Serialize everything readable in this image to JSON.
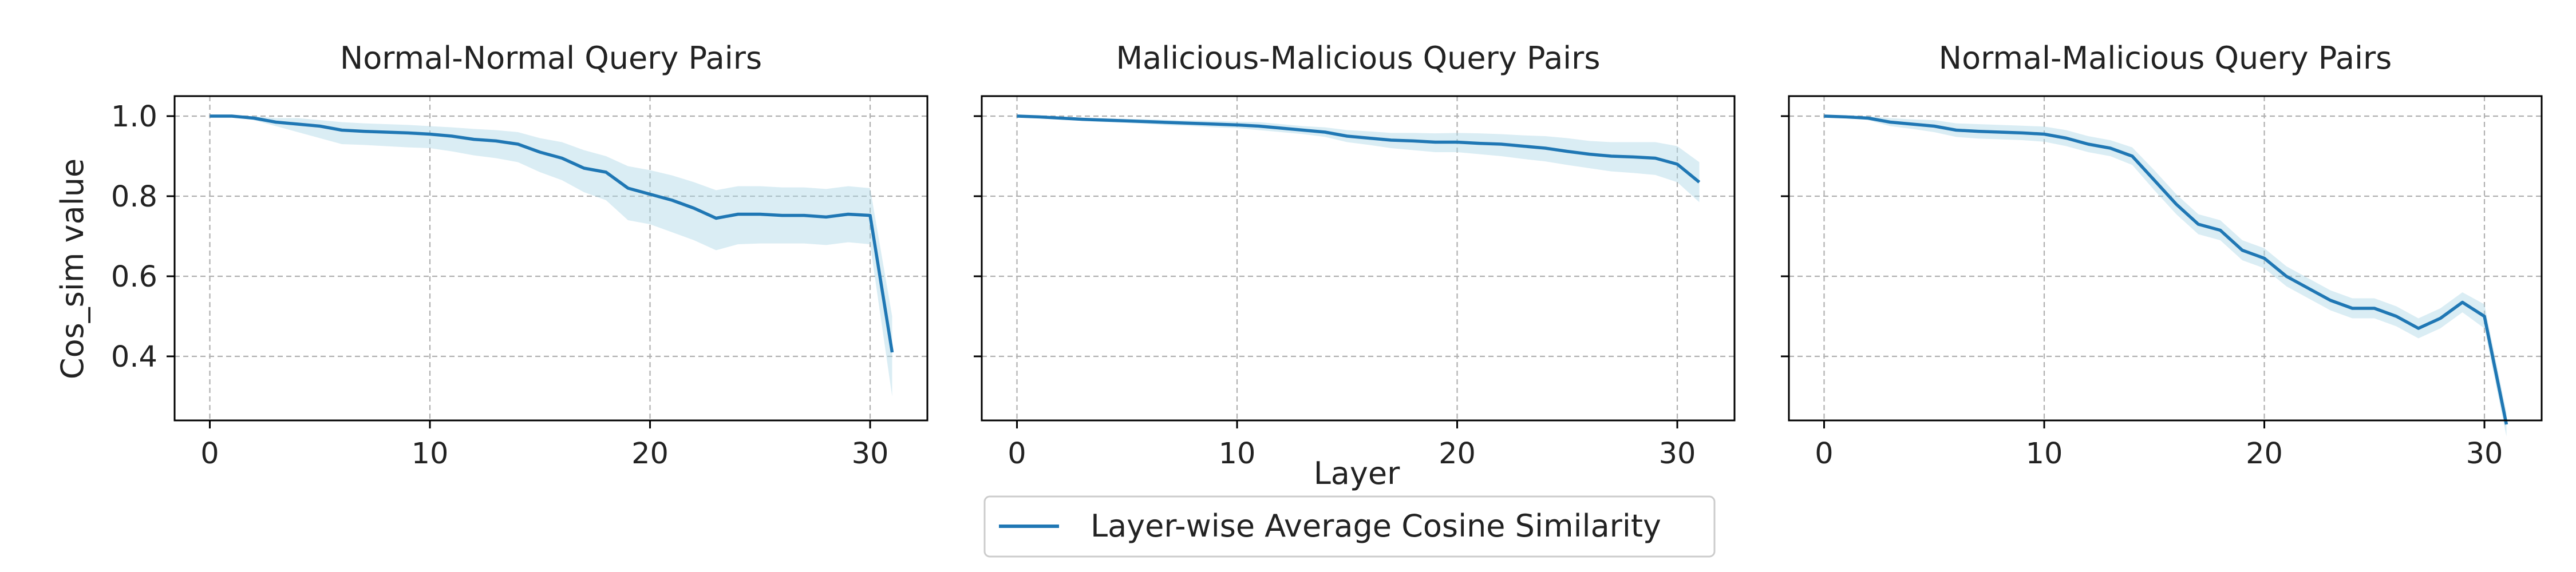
{
  "chart_data": {
    "type": "line",
    "shared": {
      "xlabel": "Layer",
      "ylabel": "Cos_sim value",
      "xlim": [
        -1.6,
        32.6
      ],
      "ylim": [
        0.24,
        1.05
      ],
      "xticks": [
        0,
        10,
        20,
        30
      ],
      "yticks": [
        0.4,
        0.6,
        0.8,
        1.0
      ],
      "ytick_labels": [
        "0.4",
        "0.6",
        "0.8",
        "1.0"
      ],
      "grid": true,
      "grid_style": "dashed",
      "legend": {
        "placement": "bottom-center",
        "entries": [
          "Layer-wise Average Cosine Similarity"
        ]
      },
      "colors": {
        "line": "#1f77b4",
        "band": "#add8e6",
        "grid": "#b0b0b0"
      }
    },
    "panels": [
      {
        "title": "Normal-Normal Query Pairs",
        "x": [
          0,
          1,
          2,
          3,
          4,
          5,
          6,
          7,
          8,
          9,
          10,
          11,
          12,
          13,
          14,
          15,
          16,
          17,
          18,
          19,
          20,
          21,
          22,
          23,
          24,
          25,
          26,
          27,
          28,
          29,
          30,
          31
        ],
        "values": [
          1.0,
          1.0,
          0.995,
          0.985,
          0.98,
          0.975,
          0.965,
          0.962,
          0.96,
          0.958,
          0.955,
          0.95,
          0.942,
          0.938,
          0.93,
          0.91,
          0.895,
          0.87,
          0.86,
          0.82,
          0.805,
          0.79,
          0.77,
          0.745,
          0.755,
          0.755,
          0.752,
          0.752,
          0.748,
          0.755,
          0.752,
          0.41
        ],
        "band_lower": [
          1.0,
          0.998,
          0.99,
          0.975,
          0.96,
          0.945,
          0.93,
          0.928,
          0.925,
          0.922,
          0.92,
          0.912,
          0.902,
          0.895,
          0.885,
          0.86,
          0.84,
          0.81,
          0.79,
          0.74,
          0.73,
          0.71,
          0.69,
          0.665,
          0.68,
          0.682,
          0.682,
          0.682,
          0.678,
          0.685,
          0.68,
          0.3
        ],
        "band_upper": [
          1.0,
          1.0,
          1.0,
          0.995,
          0.995,
          0.99,
          0.985,
          0.982,
          0.98,
          0.978,
          0.975,
          0.972,
          0.968,
          0.965,
          0.96,
          0.945,
          0.935,
          0.915,
          0.9,
          0.875,
          0.865,
          0.852,
          0.835,
          0.815,
          0.825,
          0.825,
          0.822,
          0.822,
          0.818,
          0.825,
          0.82,
          0.5
        ]
      },
      {
        "title": "Malicious-Malicious Query Pairs",
        "x": [
          0,
          1,
          2,
          3,
          4,
          5,
          6,
          7,
          8,
          9,
          10,
          11,
          12,
          13,
          14,
          15,
          16,
          17,
          18,
          19,
          20,
          21,
          22,
          23,
          24,
          25,
          26,
          27,
          28,
          29,
          30,
          31
        ],
        "values": [
          1.0,
          0.998,
          0.995,
          0.992,
          0.99,
          0.988,
          0.986,
          0.984,
          0.982,
          0.98,
          0.978,
          0.975,
          0.97,
          0.965,
          0.96,
          0.95,
          0.945,
          0.94,
          0.938,
          0.935,
          0.935,
          0.932,
          0.93,
          0.925,
          0.92,
          0.912,
          0.905,
          0.9,
          0.898,
          0.895,
          0.88,
          0.835
        ],
        "band_lower": [
          1.0,
          0.996,
          0.992,
          0.988,
          0.985,
          0.983,
          0.98,
          0.977,
          0.975,
          0.972,
          0.97,
          0.965,
          0.96,
          0.955,
          0.948,
          0.935,
          0.928,
          0.92,
          0.915,
          0.91,
          0.91,
          0.905,
          0.9,
          0.893,
          0.887,
          0.878,
          0.87,
          0.862,
          0.858,
          0.853,
          0.835,
          0.785
        ],
        "band_upper": [
          1.0,
          1.0,
          0.998,
          0.996,
          0.995,
          0.993,
          0.992,
          0.99,
          0.989,
          0.988,
          0.986,
          0.985,
          0.98,
          0.975,
          0.972,
          0.965,
          0.962,
          0.958,
          0.958,
          0.957,
          0.958,
          0.957,
          0.955,
          0.952,
          0.95,
          0.945,
          0.938,
          0.935,
          0.935,
          0.935,
          0.925,
          0.885
        ]
      },
      {
        "title": "Normal-Malicious Query Pairs",
        "x": [
          0,
          1,
          2,
          3,
          4,
          5,
          6,
          7,
          8,
          9,
          10,
          11,
          12,
          13,
          14,
          15,
          16,
          17,
          18,
          19,
          20,
          21,
          22,
          23,
          24,
          25,
          26,
          27,
          28,
          29,
          30,
          31
        ],
        "values": [
          1.0,
          0.998,
          0.995,
          0.985,
          0.98,
          0.975,
          0.965,
          0.962,
          0.96,
          0.958,
          0.955,
          0.945,
          0.93,
          0.92,
          0.9,
          0.84,
          0.78,
          0.73,
          0.715,
          0.665,
          0.645,
          0.6,
          0.57,
          0.54,
          0.52,
          0.52,
          0.5,
          0.47,
          0.495,
          0.535,
          0.5,
          0.23
        ],
        "band_lower": [
          1.0,
          0.996,
          0.99,
          0.975,
          0.968,
          0.96,
          0.948,
          0.944,
          0.942,
          0.94,
          0.936,
          0.925,
          0.91,
          0.9,
          0.878,
          0.815,
          0.755,
          0.705,
          0.69,
          0.64,
          0.62,
          0.575,
          0.545,
          0.515,
          0.495,
          0.495,
          0.475,
          0.445,
          0.47,
          0.51,
          0.47,
          0.2
        ],
        "band_upper": [
          1.0,
          1.0,
          1.0,
          0.995,
          0.992,
          0.99,
          0.982,
          0.98,
          0.978,
          0.976,
          0.974,
          0.965,
          0.95,
          0.94,
          0.922,
          0.865,
          0.805,
          0.755,
          0.74,
          0.69,
          0.67,
          0.625,
          0.595,
          0.565,
          0.545,
          0.545,
          0.525,
          0.495,
          0.52,
          0.56,
          0.53,
          0.26
        ]
      }
    ]
  }
}
